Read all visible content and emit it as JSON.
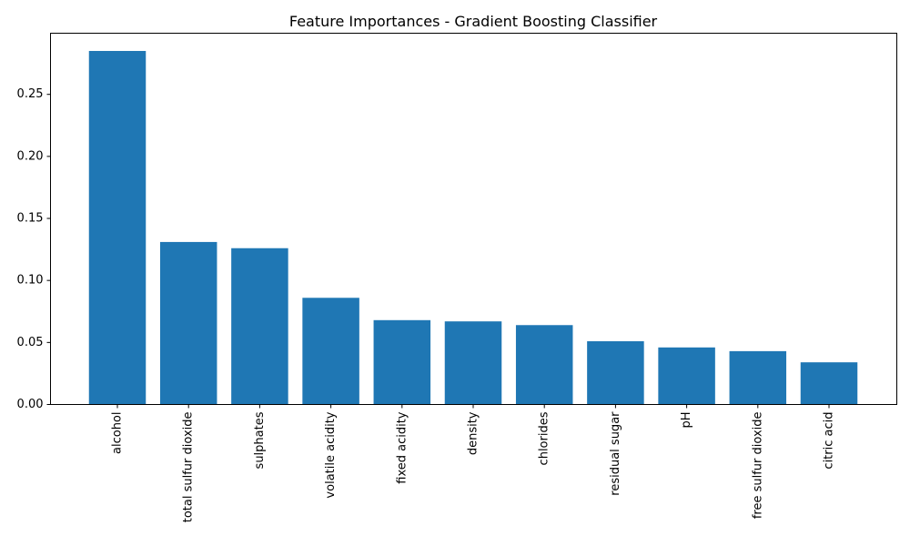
{
  "chart_data": {
    "type": "bar",
    "title": "Feature Importances - Gradient Boosting Classifier",
    "xlabel": "",
    "ylabel": "",
    "categories": [
      "alcohol",
      "total sulfur dioxide",
      "sulphates",
      "volatile acidity",
      "fixed acidity",
      "density",
      "chlorides",
      "residual sugar",
      "pH",
      "free sulfur dioxide",
      "citric acid"
    ],
    "values": [
      0.285,
      0.131,
      0.126,
      0.086,
      0.068,
      0.067,
      0.064,
      0.051,
      0.046,
      0.043,
      0.034
    ],
    "ylim": [
      0,
      0.2993
    ],
    "yticks": [
      0.0,
      0.05,
      0.1,
      0.15,
      0.2,
      0.25
    ],
    "ytick_labels": [
      "0.00",
      "0.05",
      "0.10",
      "0.15",
      "0.20",
      "0.25"
    ],
    "bar_color": "#1f77b4",
    "grid": false,
    "legend": "none"
  }
}
